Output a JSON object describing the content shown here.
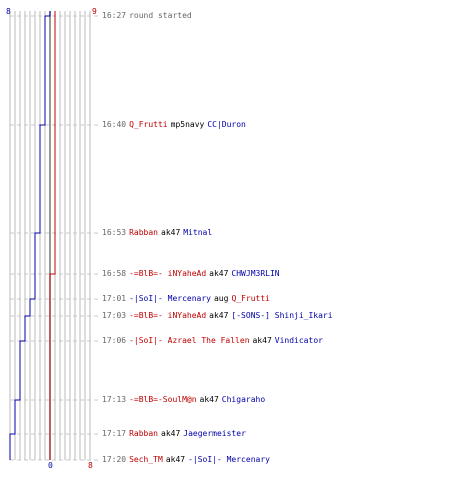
{
  "axis": {
    "top_left": "8",
    "top_right": "9",
    "bottom_left": "0",
    "bottom_right": "8"
  },
  "colors": {
    "team_red": "#c00000",
    "team_blue": "#0000aa",
    "gray_text": "#666666",
    "grid": "#bbbbbb"
  },
  "events": [
    {
      "time": "16:27",
      "message": "round started"
    },
    {
      "time": "16:40",
      "killer": "Q_Frutti",
      "killer_team": "red",
      "weapon": "mp5navy",
      "victim": "CC|Duron",
      "victim_team": "blue"
    },
    {
      "time": "16:53",
      "killer": "Rabban",
      "killer_team": "red",
      "weapon": "ak47",
      "victim": "Mitnal",
      "victim_team": "blue"
    },
    {
      "time": "16:58",
      "killer": "-=BlB=- iNYaheAd",
      "killer_team": "red",
      "weapon": "ak47",
      "victim": "CHWJM3RLIN",
      "victim_team": "blue"
    },
    {
      "time": "17:01",
      "killer": "-|SoI|- Mercenary",
      "killer_team": "blue",
      "weapon": "aug",
      "victim": "Q_Frutti",
      "victim_team": "red"
    },
    {
      "time": "17:03",
      "killer": "-=BlB=- iNYaheAd",
      "killer_team": "red",
      "weapon": "ak47",
      "victim": "[-SONS-] Shinji_Ikari",
      "victim_team": "blue"
    },
    {
      "time": "17:06",
      "killer": "-|SoI|- Azrael The Fallen",
      "killer_team": "red",
      "weapon": "ak47",
      "victim": "Vindicator",
      "victim_team": "blue"
    },
    {
      "time": "17:13",
      "killer": "-=BlB=-SoulM@n",
      "killer_team": "red",
      "weapon": "ak47",
      "victim": "Chigaraho",
      "victim_team": "blue"
    },
    {
      "time": "17:17",
      "killer": "Rabban",
      "killer_team": "red",
      "weapon": "ak47",
      "victim": "Jaegermeister",
      "victim_team": "blue"
    },
    {
      "time": "17:20",
      "killer": "Sech_TM",
      "killer_team": "red",
      "weapon": "ak47",
      "victim": "-|SoI|- Mercenary",
      "victim_team": "blue"
    }
  ],
  "blue_alive_steps": [
    8,
    7,
    6,
    5,
    5,
    4,
    3,
    2,
    1,
    0
  ],
  "red_alive_steps": [
    9,
    9,
    9,
    9,
    8,
    8,
    8,
    8,
    8,
    8
  ]
}
